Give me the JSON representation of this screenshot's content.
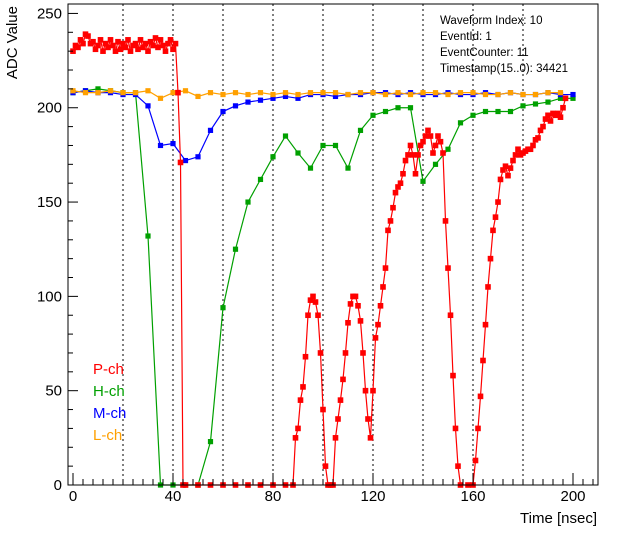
{
  "chart_data": {
    "type": "line",
    "xlabel": "Time [nsec]",
    "ylabel": "ADC Value",
    "xlim": [
      -2,
      210
    ],
    "ylim": [
      0,
      255
    ],
    "xticks": [
      0,
      40,
      80,
      120,
      160,
      200
    ],
    "yticks": [
      0,
      50,
      100,
      150,
      200,
      250
    ],
    "grid_x": [
      20,
      40,
      60,
      80,
      100,
      120,
      140,
      160,
      180
    ],
    "info": [
      "Waveform Index: 10",
      "EventId: 1",
      "EventCounter: 11",
      "Timestamp(15..0): 34421"
    ],
    "legend_position": "bottom-left",
    "series": [
      {
        "name": "P-ch",
        "color": "#ff0000",
        "points": [
          [
            0,
            230
          ],
          [
            1,
            233
          ],
          [
            2,
            232
          ],
          [
            3,
            236
          ],
          [
            4,
            234
          ],
          [
            5,
            239
          ],
          [
            6,
            238
          ],
          [
            7,
            234
          ],
          [
            8,
            235
          ],
          [
            9,
            231
          ],
          [
            10,
            233
          ],
          [
            11,
            236
          ],
          [
            12,
            230
          ],
          [
            13,
            234
          ],
          [
            14,
            232
          ],
          [
            15,
            236
          ],
          [
            16,
            233
          ],
          [
            17,
            230
          ],
          [
            18,
            235
          ],
          [
            19,
            231
          ],
          [
            20,
            234
          ],
          [
            21,
            232
          ],
          [
            22,
            236
          ],
          [
            23,
            230
          ],
          [
            24,
            233
          ],
          [
            25,
            234
          ],
          [
            26,
            231
          ],
          [
            27,
            236
          ],
          [
            28,
            232
          ],
          [
            29,
            234
          ],
          [
            30,
            230
          ],
          [
            31,
            235
          ],
          [
            32,
            233
          ],
          [
            33,
            237
          ],
          [
            34,
            232
          ],
          [
            35,
            236
          ],
          [
            36,
            233
          ],
          [
            37,
            230
          ],
          [
            38,
            234
          ],
          [
            39,
            236
          ],
          [
            40,
            231
          ],
          [
            41,
            234
          ],
          [
            42,
            208
          ],
          [
            43,
            171
          ],
          [
            44,
            0
          ],
          [
            45,
            0
          ],
          [
            50,
            0
          ],
          [
            55,
            0
          ],
          [
            60,
            0
          ],
          [
            65,
            0
          ],
          [
            70,
            0
          ],
          [
            75,
            0
          ],
          [
            80,
            0
          ],
          [
            85,
            0
          ],
          [
            88,
            0
          ],
          [
            89,
            25
          ],
          [
            90,
            30
          ],
          [
            91,
            45
          ],
          [
            92,
            52
          ],
          [
            93,
            68
          ],
          [
            94,
            90
          ],
          [
            95,
            98
          ],
          [
            96,
            100
          ],
          [
            97,
            97
          ],
          [
            98,
            90
          ],
          [
            99,
            70
          ],
          [
            100,
            40
          ],
          [
            101,
            10
          ],
          [
            102,
            0
          ],
          [
            103,
            0
          ],
          [
            104,
            0
          ],
          [
            105,
            25
          ],
          [
            106,
            35
          ],
          [
            107,
            45
          ],
          [
            108,
            56
          ],
          [
            109,
            70
          ],
          [
            110,
            86
          ],
          [
            111,
            96
          ],
          [
            112,
            100
          ],
          [
            113,
            100
          ],
          [
            114,
            95
          ],
          [
            115,
            87
          ],
          [
            116,
            70
          ],
          [
            117,
            50
          ],
          [
            118,
            35
          ],
          [
            119,
            25
          ],
          [
            120,
            50
          ],
          [
            121,
            78
          ],
          [
            122,
            85
          ],
          [
            123,
            95
          ],
          [
            124,
            105
          ],
          [
            125,
            115
          ],
          [
            126,
            135
          ],
          [
            127,
            140
          ],
          [
            128,
            147
          ],
          [
            129,
            155
          ],
          [
            130,
            158
          ],
          [
            131,
            160
          ],
          [
            132,
            165
          ],
          [
            133,
            172
          ],
          [
            134,
            175
          ],
          [
            135,
            180
          ],
          [
            136,
            175
          ],
          [
            137,
            165
          ],
          [
            138,
            175
          ],
          [
            139,
            180
          ],
          [
            140,
            182
          ],
          [
            141,
            185
          ],
          [
            142,
            188
          ],
          [
            143,
            185
          ],
          [
            144,
            176
          ],
          [
            145,
            180
          ],
          [
            146,
            185
          ],
          [
            147,
            182
          ],
          [
            148,
            176
          ],
          [
            149,
            140
          ],
          [
            150,
            115
          ],
          [
            151,
            90
          ],
          [
            152,
            58
          ],
          [
            153,
            30
          ],
          [
            154,
            10
          ],
          [
            155,
            0
          ],
          [
            158,
            0
          ],
          [
            160,
            0
          ],
          [
            161,
            13
          ],
          [
            162,
            30
          ],
          [
            163,
            47
          ],
          [
            164,
            66
          ],
          [
            165,
            85
          ],
          [
            166,
            105
          ],
          [
            167,
            120
          ],
          [
            168,
            135
          ],
          [
            169,
            142
          ],
          [
            170,
            150
          ],
          [
            171,
            162
          ],
          [
            172,
            167
          ],
          [
            173,
            169
          ],
          [
            174,
            164
          ],
          [
            175,
            168
          ],
          [
            176,
            172
          ],
          [
            177,
            175
          ],
          [
            178,
            178
          ],
          [
            179,
            175
          ],
          [
            180,
            176
          ],
          [
            181,
            177
          ],
          [
            182,
            178
          ],
          [
            183,
            178
          ],
          [
            184,
            180
          ],
          [
            185,
            183
          ],
          [
            186,
            184
          ],
          [
            187,
            188
          ],
          [
            188,
            190
          ],
          [
            189,
            194
          ],
          [
            190,
            196
          ],
          [
            191,
            193
          ],
          [
            192,
            197
          ],
          [
            193,
            196
          ],
          [
            194,
            197
          ],
          [
            195,
            195
          ],
          [
            196,
            200
          ],
          [
            197,
            205
          ]
        ]
      },
      {
        "name": "H-ch",
        "color": "#00a000",
        "points": [
          [
            0,
            208
          ],
          [
            5,
            209
          ],
          [
            10,
            210
          ],
          [
            15,
            209
          ],
          [
            20,
            208
          ],
          [
            25,
            208
          ],
          [
            30,
            132
          ],
          [
            35,
            0
          ],
          [
            40,
            0
          ],
          [
            45,
            0
          ],
          [
            50,
            0
          ],
          [
            55,
            23
          ],
          [
            60,
            94
          ],
          [
            65,
            125
          ],
          [
            70,
            150
          ],
          [
            75,
            162
          ],
          [
            80,
            174
          ],
          [
            85,
            185
          ],
          [
            90,
            176
          ],
          [
            95,
            168
          ],
          [
            100,
            180
          ],
          [
            105,
            180
          ],
          [
            110,
            168
          ],
          [
            115,
            188
          ],
          [
            120,
            196
          ],
          [
            125,
            198
          ],
          [
            130,
            200
          ],
          [
            135,
            200
          ],
          [
            140,
            161
          ],
          [
            145,
            170
          ],
          [
            150,
            178
          ],
          [
            155,
            192
          ],
          [
            160,
            196
          ],
          [
            165,
            198
          ],
          [
            170,
            198
          ],
          [
            175,
            198
          ],
          [
            180,
            201
          ],
          [
            185,
            202
          ],
          [
            190,
            203
          ],
          [
            195,
            205
          ],
          [
            200,
            205
          ]
        ]
      },
      {
        "name": "M-ch",
        "color": "#0000ff",
        "points": [
          [
            0,
            208
          ],
          [
            5,
            209
          ],
          [
            10,
            208
          ],
          [
            15,
            208
          ],
          [
            20,
            207
          ],
          [
            25,
            207
          ],
          [
            30,
            201
          ],
          [
            35,
            180
          ],
          [
            40,
            181
          ],
          [
            45,
            172
          ],
          [
            50,
            174
          ],
          [
            55,
            188
          ],
          [
            60,
            198
          ],
          [
            65,
            201
          ],
          [
            70,
            203
          ],
          [
            75,
            204
          ],
          [
            80,
            205
          ],
          [
            85,
            206
          ],
          [
            90,
            205
          ],
          [
            95,
            207
          ],
          [
            100,
            207
          ],
          [
            105,
            206
          ],
          [
            110,
            207
          ],
          [
            115,
            207
          ],
          [
            120,
            208
          ],
          [
            125,
            208
          ],
          [
            130,
            207
          ],
          [
            135,
            208
          ],
          [
            140,
            207
          ],
          [
            145,
            207
          ],
          [
            150,
            208
          ],
          [
            155,
            207
          ],
          [
            160,
            207
          ],
          [
            165,
            208
          ],
          [
            170,
            207
          ],
          [
            175,
            208
          ],
          [
            180,
            207
          ],
          [
            185,
            207
          ],
          [
            190,
            208
          ],
          [
            195,
            207
          ],
          [
            200,
            207
          ]
        ]
      },
      {
        "name": "L-ch",
        "color": "#ffa000",
        "points": [
          [
            0,
            209
          ],
          [
            5,
            208
          ],
          [
            10,
            208
          ],
          [
            15,
            209
          ],
          [
            20,
            208
          ],
          [
            25,
            208
          ],
          [
            30,
            209
          ],
          [
            35,
            205
          ],
          [
            40,
            208
          ],
          [
            45,
            209
          ],
          [
            50,
            206
          ],
          [
            55,
            208
          ],
          [
            60,
            207
          ],
          [
            65,
            208
          ],
          [
            70,
            207
          ],
          [
            75,
            208
          ],
          [
            80,
            207
          ],
          [
            85,
            208
          ],
          [
            90,
            207
          ],
          [
            95,
            208
          ],
          [
            100,
            208
          ],
          [
            105,
            208
          ],
          [
            110,
            207
          ],
          [
            115,
            208
          ],
          [
            120,
            208
          ],
          [
            125,
            207
          ],
          [
            130,
            208
          ],
          [
            135,
            207
          ],
          [
            140,
            208
          ],
          [
            145,
            208
          ],
          [
            150,
            207
          ],
          [
            155,
            208
          ],
          [
            160,
            208
          ],
          [
            165,
            207
          ],
          [
            170,
            207
          ],
          [
            175,
            208
          ],
          [
            180,
            207
          ],
          [
            185,
            207
          ],
          [
            190,
            208
          ],
          [
            195,
            208
          ]
        ]
      }
    ]
  }
}
